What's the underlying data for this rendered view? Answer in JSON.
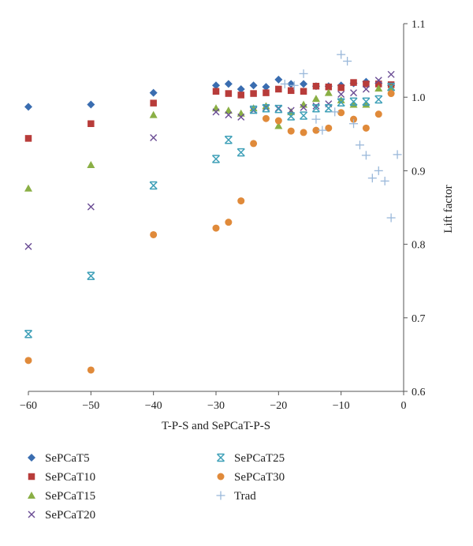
{
  "chart_data": {
    "type": "scatter",
    "xlabel": "T-P-S and SePCaT-P-S",
    "ylabel": "Lift factor",
    "xlim": [
      -60,
      0
    ],
    "ylim": [
      0.6,
      1.1
    ],
    "x_ticks": [
      -60,
      -50,
      -40,
      -30,
      -20,
      -10,
      0
    ],
    "y_ticks": [
      0.6,
      0.7,
      0.8,
      0.9,
      1.0,
      1.1
    ],
    "x_tick_labels": [
      "−60",
      "−50",
      "−40",
      "−30",
      "−20",
      "−10",
      "0"
    ],
    "y_tick_labels": [
      "0.6",
      "0.7",
      "0.8",
      "0.9",
      "1.0",
      "1.1"
    ],
    "grid": false,
    "legend_position": "bottom",
    "series": [
      {
        "name": "SePCaT5",
        "marker": "diamond",
        "color": "#3a6db0",
        "points": [
          [
            -60,
            0.987
          ],
          [
            -50,
            0.99
          ],
          [
            -40,
            1.006
          ],
          [
            -30,
            1.016
          ],
          [
            -28,
            1.018
          ],
          [
            -26,
            1.011
          ],
          [
            -24,
            1.016
          ],
          [
            -22,
            1.014
          ],
          [
            -20,
            1.024
          ],
          [
            -18,
            1.018
          ],
          [
            -16,
            1.018
          ],
          [
            -14,
            1.015
          ],
          [
            -12,
            1.015
          ],
          [
            -10,
            1.016
          ],
          [
            -8,
            1.019
          ],
          [
            -6,
            1.021
          ],
          [
            -4,
            1.019
          ],
          [
            -2,
            1.016
          ]
        ]
      },
      {
        "name": "SePCaT10",
        "marker": "square",
        "color": "#b83c3a",
        "points": [
          [
            -60,
            0.944
          ],
          [
            -50,
            0.964
          ],
          [
            -40,
            0.992
          ],
          [
            -30,
            1.008
          ],
          [
            -28,
            1.005
          ],
          [
            -26,
            1.003
          ],
          [
            -24,
            1.005
          ],
          [
            -22,
            1.006
          ],
          [
            -20,
            1.011
          ],
          [
            -18,
            1.009
          ],
          [
            -16,
            1.008
          ],
          [
            -14,
            1.015
          ],
          [
            -12,
            1.014
          ],
          [
            -10,
            1.013
          ],
          [
            -8,
            1.02
          ],
          [
            -6,
            1.018
          ],
          [
            -4,
            1.018
          ],
          [
            -2,
            1.017
          ]
        ]
      },
      {
        "name": "SePCaT15",
        "marker": "triangle",
        "color": "#8aaf45",
        "points": [
          [
            -60,
            0.876
          ],
          [
            -50,
            0.908
          ],
          [
            -40,
            0.976
          ],
          [
            -30,
            0.985
          ],
          [
            -28,
            0.982
          ],
          [
            -26,
            0.978
          ],
          [
            -24,
            0.985
          ],
          [
            -22,
            0.988
          ],
          [
            -20,
            0.961
          ],
          [
            -18,
            0.98
          ],
          [
            -16,
            0.99
          ],
          [
            -14,
            0.998
          ],
          [
            -12,
            1.006
          ],
          [
            -10,
            0.996
          ],
          [
            -8,
            0.99
          ],
          [
            -6,
            0.99
          ],
          [
            -4,
            1.012
          ],
          [
            -2,
            1.013
          ]
        ]
      },
      {
        "name": "SePCaT20",
        "marker": "x",
        "color": "#6a4c94",
        "points": [
          [
            -60,
            0.797
          ],
          [
            -50,
            0.851
          ],
          [
            -40,
            0.945
          ],
          [
            -30,
            0.98
          ],
          [
            -28,
            0.976
          ],
          [
            -26,
            0.973
          ],
          [
            -24,
            0.982
          ],
          [
            -22,
            0.986
          ],
          [
            -20,
            0.985
          ],
          [
            -18,
            0.982
          ],
          [
            -16,
            0.986
          ],
          [
            -14,
            0.988
          ],
          [
            -12,
            0.991
          ],
          [
            -10,
            1.004
          ],
          [
            -8,
            1.006
          ],
          [
            -6,
            1.011
          ],
          [
            -4,
            1.023
          ],
          [
            -2,
            1.031
          ]
        ]
      },
      {
        "name": "SePCaT25",
        "marker": "asterisk",
        "color": "#3fa0b8",
        "points": [
          [
            -60,
            0.678
          ],
          [
            -50,
            0.757
          ],
          [
            -40,
            0.88
          ],
          [
            -30,
            0.916
          ],
          [
            -28,
            0.942
          ],
          [
            -26,
            0.925
          ],
          [
            -24,
            0.983
          ],
          [
            -22,
            0.985
          ],
          [
            -20,
            0.984
          ],
          [
            -18,
            0.974
          ],
          [
            -16,
            0.975
          ],
          [
            -14,
            0.985
          ],
          [
            -12,
            0.985
          ],
          [
            -10,
            0.993
          ],
          [
            -8,
            0.994
          ],
          [
            -6,
            0.994
          ],
          [
            -4,
            0.997
          ],
          [
            -2,
            1.014
          ]
        ]
      },
      {
        "name": "SePCaT30",
        "marker": "circle",
        "color": "#e08a3a",
        "points": [
          [
            -60,
            0.642
          ],
          [
            -50,
            0.629
          ],
          [
            -40,
            0.813
          ],
          [
            -30,
            0.822
          ],
          [
            -28,
            0.83
          ],
          [
            -26,
            0.859
          ],
          [
            -24,
            0.937
          ],
          [
            -22,
            0.971
          ],
          [
            -20,
            0.968
          ],
          [
            -18,
            0.954
          ],
          [
            -16,
            0.952
          ],
          [
            -14,
            0.955
          ],
          [
            -12,
            0.958
          ],
          [
            -10,
            0.979
          ],
          [
            -8,
            0.97
          ],
          [
            -6,
            0.958
          ],
          [
            -4,
            0.977
          ],
          [
            -2,
            1.005
          ]
        ]
      },
      {
        "name": "Trad",
        "marker": "plus",
        "color": "#9ab8da",
        "points": [
          [
            -19,
            1.018
          ],
          [
            -17.5,
            1.016
          ],
          [
            -16,
            1.032
          ],
          [
            -14,
            0.97
          ],
          [
            -13,
            0.955
          ],
          [
            -11,
            0.98
          ],
          [
            -10,
            1.058
          ],
          [
            -9,
            1.049
          ],
          [
            -8,
            0.964
          ],
          [
            -7,
            0.935
          ],
          [
            -6,
            0.921
          ],
          [
            -5,
            0.89
          ],
          [
            -4,
            0.9
          ],
          [
            -3,
            0.886
          ],
          [
            -2,
            0.836
          ],
          [
            -1,
            0.922
          ]
        ]
      }
    ]
  }
}
